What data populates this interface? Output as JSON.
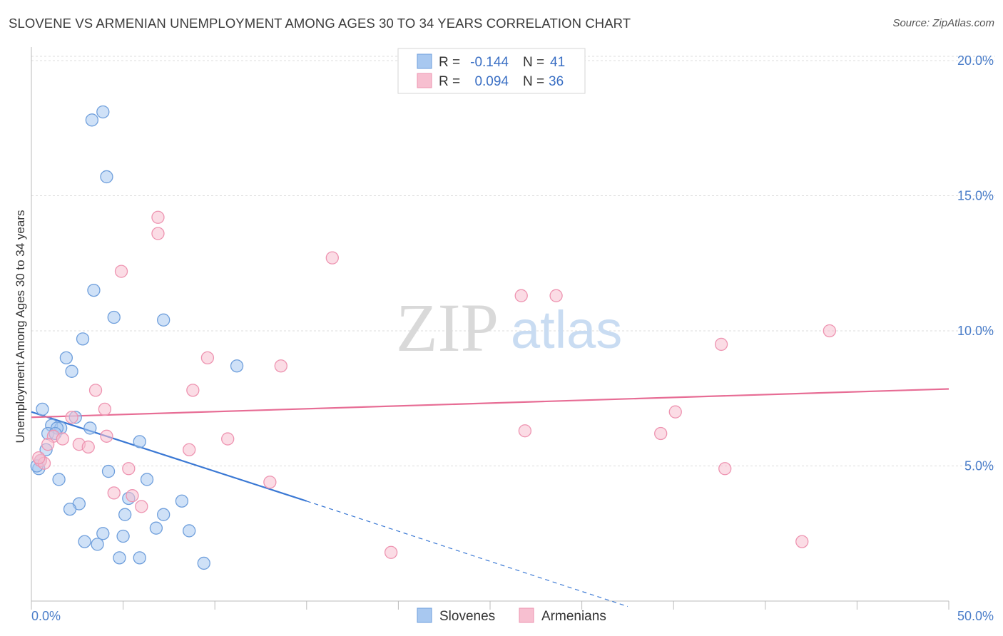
{
  "title": "SLOVENE VS ARMENIAN UNEMPLOYMENT AMONG AGES 30 TO 34 YEARS CORRELATION CHART",
  "source": "Source: ZipAtlas.com",
  "watermark": {
    "zip": "ZIP",
    "atlas": "atlas"
  },
  "colors": {
    "blue_fill": "#a8c8f0",
    "blue_stroke": "#6f9fdc",
    "blue_line": "#3a78d4",
    "pink_fill": "#f7bfd0",
    "pink_stroke": "#ee94b1",
    "pink_line": "#e76d95",
    "tick_text": "#4a7dc9",
    "grid": "#dcdcdc"
  },
  "legend": {
    "r_label": "R =",
    "n_label": "N =",
    "rows": [
      {
        "series": "Slovenes",
        "r": "-0.144",
        "n": "41"
      },
      {
        "series": "Armenians",
        "r": "0.094",
        "n": "36"
      }
    ]
  },
  "chart_data": {
    "type": "scatter",
    "title": "SLOVENE VS ARMENIAN UNEMPLOYMENT AMONG AGES 30 TO 34 YEARS CORRELATION CHART",
    "xlabel": "",
    "ylabel": "Unemployment Among Ages 30 to 34 years",
    "xlim": [
      0,
      50
    ],
    "ylim": [
      0,
      20.5
    ],
    "x_tick_labels": [
      "0.0%",
      "50.0%"
    ],
    "y_ticks": [
      5,
      10,
      15,
      20
    ],
    "y_tick_labels": [
      "5.0%",
      "10.0%",
      "15.0%",
      "20.0%"
    ],
    "grid": true,
    "legend_position": "top-center",
    "series": [
      {
        "name": "Slovenes",
        "color": "blue",
        "points": [
          [
            3.3,
            17.8
          ],
          [
            3.9,
            18.1
          ],
          [
            4.1,
            15.7
          ],
          [
            3.4,
            11.5
          ],
          [
            4.5,
            10.5
          ],
          [
            7.2,
            10.4
          ],
          [
            2.8,
            9.7
          ],
          [
            1.9,
            9.0
          ],
          [
            2.2,
            8.5
          ],
          [
            11.2,
            8.7
          ],
          [
            0.6,
            7.1
          ],
          [
            1.1,
            6.5
          ],
          [
            1.6,
            6.4
          ],
          [
            2.4,
            6.8
          ],
          [
            1.4,
            6.4
          ],
          [
            3.2,
            6.4
          ],
          [
            0.9,
            6.2
          ],
          [
            1.3,
            6.2
          ],
          [
            5.9,
            5.9
          ],
          [
            0.8,
            5.6
          ],
          [
            0.5,
            5.2
          ],
          [
            0.4,
            4.9
          ],
          [
            4.2,
            4.8
          ],
          [
            1.5,
            4.5
          ],
          [
            6.3,
            4.5
          ],
          [
            5.3,
            3.8
          ],
          [
            2.6,
            3.6
          ],
          [
            8.2,
            3.7
          ],
          [
            2.1,
            3.4
          ],
          [
            5.1,
            3.2
          ],
          [
            7.2,
            3.2
          ],
          [
            6.8,
            2.7
          ],
          [
            8.6,
            2.6
          ],
          [
            3.9,
            2.5
          ],
          [
            5.0,
            2.4
          ],
          [
            2.9,
            2.2
          ],
          [
            3.6,
            2.1
          ],
          [
            4.8,
            1.6
          ],
          [
            5.9,
            1.6
          ],
          [
            9.4,
            1.4
          ],
          [
            0.3,
            5.0
          ]
        ],
        "trend": {
          "x0": 0,
          "y0": 7.0,
          "x1": 15,
          "y1": 3.7,
          "dash_x1": 32.5,
          "dash_y1": -0.2
        }
      },
      {
        "name": "Armenians",
        "color": "pink",
        "points": [
          [
            6.9,
            14.2
          ],
          [
            6.9,
            13.6
          ],
          [
            16.4,
            12.7
          ],
          [
            4.9,
            12.2
          ],
          [
            26.7,
            11.3
          ],
          [
            28.6,
            11.3
          ],
          [
            43.5,
            10.0
          ],
          [
            37.6,
            9.5
          ],
          [
            9.6,
            9.0
          ],
          [
            13.6,
            8.7
          ],
          [
            3.5,
            7.8
          ],
          [
            8.8,
            7.8
          ],
          [
            4.0,
            7.1
          ],
          [
            35.1,
            7.0
          ],
          [
            2.2,
            6.8
          ],
          [
            1.2,
            6.1
          ],
          [
            4.1,
            6.1
          ],
          [
            1.7,
            6.0
          ],
          [
            10.7,
            6.0
          ],
          [
            26.9,
            6.3
          ],
          [
            34.3,
            6.2
          ],
          [
            0.9,
            5.8
          ],
          [
            2.6,
            5.8
          ],
          [
            3.1,
            5.7
          ],
          [
            8.6,
            5.6
          ],
          [
            0.5,
            5.2
          ],
          [
            0.7,
            5.1
          ],
          [
            5.3,
            4.9
          ],
          [
            37.8,
            4.9
          ],
          [
            13.0,
            4.4
          ],
          [
            4.5,
            4.0
          ],
          [
            5.5,
            3.9
          ],
          [
            6.0,
            3.5
          ],
          [
            42.0,
            2.2
          ],
          [
            19.6,
            1.8
          ],
          [
            0.4,
            5.3
          ]
        ],
        "trend": {
          "x0": 0,
          "y0": 6.8,
          "x1": 50,
          "y1": 7.85
        }
      }
    ]
  }
}
